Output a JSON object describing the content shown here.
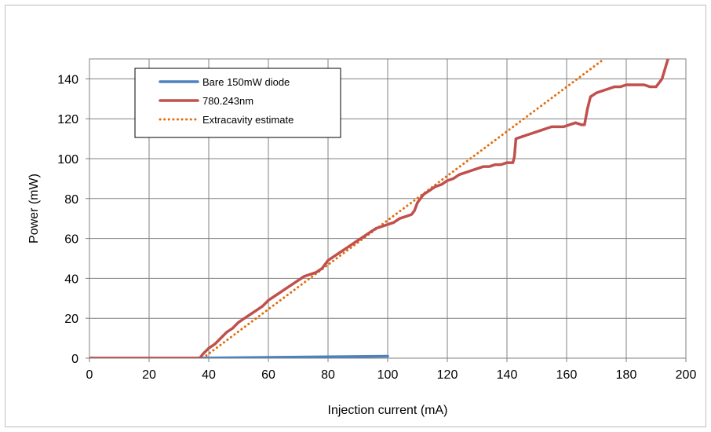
{
  "chart_data": {
    "type": "line",
    "title": "",
    "xlabel": "Injection current (mA)",
    "ylabel": "Power (mW)",
    "xlim": [
      0,
      200
    ],
    "ylim": [
      0,
      150
    ],
    "x_ticks": [
      0,
      20,
      40,
      60,
      80,
      100,
      120,
      140,
      160,
      180,
      200
    ],
    "y_ticks": [
      0,
      20,
      40,
      60,
      80,
      100,
      120,
      140
    ],
    "grid": true,
    "legend_position": "top-left",
    "series": [
      {
        "name": "Bare 150mW diode",
        "color": "#4f81bd",
        "style": "solid",
        "x": [
          0,
          36,
          40,
          60,
          80,
          100
        ],
        "y": [
          0,
          0,
          0.1,
          0.4,
          0.7,
          1.0
        ]
      },
      {
        "name": "780.243nm",
        "color": "#c0504d",
        "style": "solid",
        "x": [
          0,
          37,
          38,
          40,
          42,
          44,
          46,
          48,
          50,
          52,
          54,
          56,
          58,
          60,
          62,
          64,
          66,
          68,
          70,
          72,
          74,
          76,
          77,
          78,
          80,
          82,
          84,
          86,
          88,
          90,
          92,
          94,
          96,
          98,
          100,
          102,
          104,
          106,
          108,
          109,
          110,
          112,
          114,
          116,
          118,
          120,
          122,
          124,
          126,
          128,
          130,
          132,
          134,
          136,
          138,
          140,
          142,
          142.5,
          143,
          145,
          147,
          149,
          151,
          153,
          155,
          157,
          159,
          161,
          163,
          165,
          166,
          167,
          168,
          170,
          172,
          174,
          176,
          178,
          180,
          182,
          184,
          186,
          188,
          190,
          192,
          193,
          194,
          195
        ],
        "y": [
          0,
          0,
          2,
          5,
          7,
          10,
          13,
          15,
          18,
          20,
          22,
          24,
          26,
          29,
          31,
          33,
          35,
          37,
          39,
          41,
          42,
          43,
          44,
          45,
          49,
          51,
          53,
          55,
          57,
          59,
          61,
          63,
          65,
          66,
          67,
          68,
          70,
          71,
          72,
          74,
          78,
          82,
          84,
          86,
          87,
          89,
          90,
          92,
          93,
          94,
          95,
          96,
          96,
          97,
          97,
          98,
          98,
          101,
          110,
          111,
          112,
          113,
          114,
          115,
          116,
          116,
          116,
          117,
          118,
          117,
          117,
          125,
          131,
          133,
          134,
          135,
          136,
          136,
          137,
          137,
          137,
          137,
          136,
          136,
          140,
          145,
          150,
          155
        ]
      },
      {
        "name": "Extracavity estimate",
        "color": "#e46c0a",
        "style": "dotted",
        "x": [
          38,
          172.6
        ],
        "y": [
          0,
          150
        ]
      }
    ]
  }
}
